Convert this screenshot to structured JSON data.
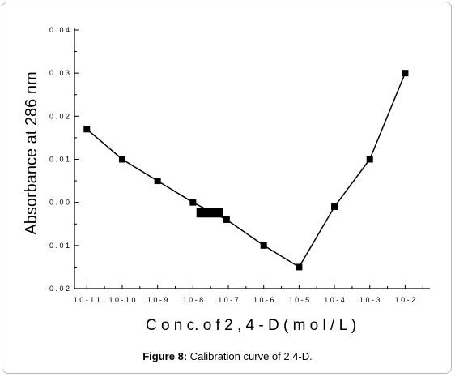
{
  "chart_data": {
    "type": "line",
    "xlabel": "C o n c. o f  2 , 4 - D   ( m o l / L )",
    "ylabel": "Absorbance  at 286 nm",
    "categories": [
      "10-11",
      "10-10",
      "10-9",
      "10-8",
      "10-7",
      "10-6",
      "10-5",
      "10-4",
      "10-3",
      "10-2"
    ],
    "x_tick_labels": [
      "1 0 - 1 1",
      "1 0 - 1 0",
      "1 0 - 9",
      "1 0 - 8",
      "1 0 - 7",
      "1 0 - 6",
      "1 0 - 5",
      "1 0 - 4",
      "1 0 - 3",
      "1 0 - 2"
    ],
    "series": [
      {
        "x": [
          0,
          1,
          2,
          3,
          3.95,
          5,
          6,
          7,
          8,
          9
        ],
        "values": [
          0.017,
          0.01,
          0.005,
          0.0,
          -0.004,
          -0.01,
          -0.015,
          -0.001,
          0.01,
          0.03
        ]
      }
    ],
    "overlay_block": {
      "x_from": 3.1,
      "x_to": 3.85,
      "y_from": -0.0035,
      "y_to": -0.0012
    },
    "ylim": [
      -0.02,
      0.04
    ],
    "xlim": [
      -0.35,
      9.7
    ],
    "y_ticks": [
      -0.02,
      -0.01,
      0.0,
      0.01,
      0.02,
      0.03,
      0.04
    ],
    "y_tick_labels": [
      "- 0 . 0 2",
      "- 0 . 0 1",
      "0 . 0 0",
      "0 . 0 1",
      "0 . 0 2",
      "0 . 0 3",
      "0 . 0 4"
    ],
    "grid": false,
    "line_color": "#000000",
    "marker": "square"
  },
  "caption": {
    "label": "Figure 8:",
    "text": " Calibration curve of 2,4-D."
  }
}
